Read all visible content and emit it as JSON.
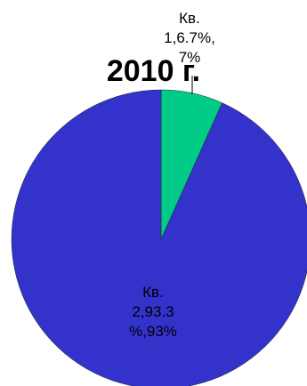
{
  "chart_data": {
    "type": "pie",
    "title": "2010 г.",
    "categories": [
      "Кв. 1",
      "Кв. 2"
    ],
    "values": [
      6.7,
      93.3
    ],
    "percent_labels": [
      "7%",
      "93%"
    ],
    "slices": [
      {
        "category": "Кв.",
        "category_num": "1",
        "value_text": "6.7%",
        "percent": "7%",
        "color": "#00CC88"
      },
      {
        "category": "Кв.",
        "category_num": "2",
        "value_text": "93.3",
        "value_text_tail": "%",
        "percent": "93%",
        "color": "#3333CC"
      }
    ],
    "labels": {
      "slice0": [
        "Кв.",
        "1,6.7%,",
        "7%"
      ],
      "slice1": [
        "Кв.",
        "2,93.3",
        "%,93%"
      ]
    },
    "legend": "none"
  }
}
